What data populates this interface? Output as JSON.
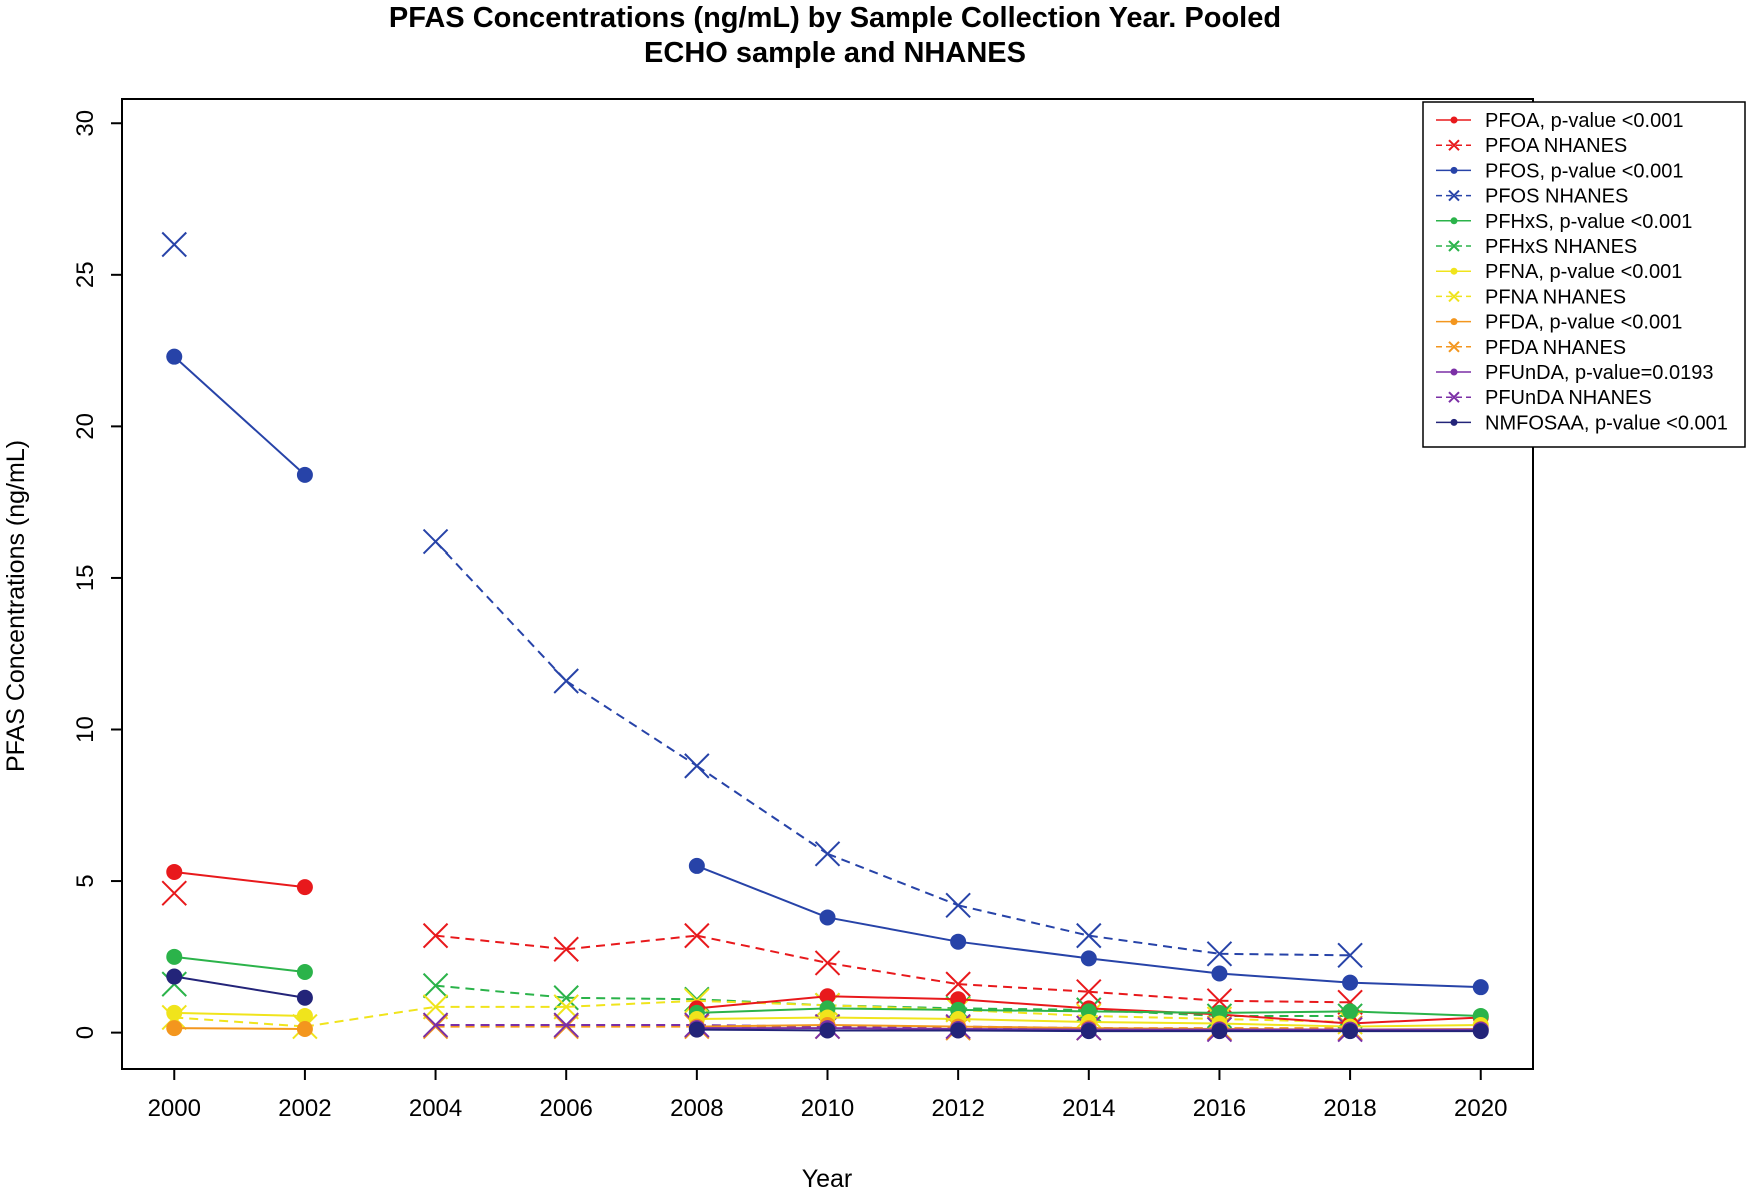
{
  "chart_data": {
    "type": "line",
    "title": "PFAS Concentrations (ng/mL) by Sample Collection Year. Pooled ECHO sample and NHANES",
    "title_lines": [
      "PFAS Concentrations (ng/mL) by Sample Collection Year. Pooled",
      "ECHO sample and NHANES"
    ],
    "xlabel": "Year",
    "ylabel": "PFAS Concentrations (ng/mL)",
    "xlim": [
      1999.2,
      2020.8
    ],
    "ylim": [
      -1.2,
      30.8
    ],
    "x_ticks": [
      2000,
      2002,
      2004,
      2006,
      2008,
      2010,
      2012,
      2014,
      2016,
      2018,
      2020
    ],
    "y_ticks": [
      0,
      5,
      10,
      15,
      20,
      25,
      30
    ],
    "grid": false,
    "legend_position": "top-right",
    "series": [
      {
        "name": "PFOA, p-value <0.001",
        "color": "#e8191c",
        "dashed": false,
        "marker": "dot",
        "points": [
          [
            2000,
            5.3
          ],
          [
            2002,
            4.8
          ],
          null,
          [
            2008,
            0.8
          ],
          [
            2010,
            1.2
          ],
          [
            2012,
            1.1
          ],
          [
            2014,
            0.8
          ],
          [
            2016,
            0.6
          ],
          [
            2018,
            0.3
          ],
          [
            2020,
            0.5
          ]
        ]
      },
      {
        "name": "PFOA NHANES",
        "color": "#e8191c",
        "dashed": true,
        "marker": "x",
        "points": [
          [
            2000,
            4.6
          ],
          null,
          [
            2004,
            3.2
          ],
          [
            2006,
            2.75
          ],
          [
            2008,
            3.2
          ],
          [
            2010,
            2.3
          ],
          [
            2012,
            1.6
          ],
          [
            2014,
            1.35
          ],
          [
            2016,
            1.05
          ],
          [
            2018,
            1.0
          ]
        ]
      },
      {
        "name": "PFOS, p-value <0.001",
        "color": "#2743a8",
        "dashed": false,
        "marker": "dot",
        "points": [
          [
            2000,
            22.3
          ],
          [
            2002,
            18.4
          ],
          null,
          [
            2008,
            5.5
          ],
          [
            2010,
            3.8
          ],
          [
            2012,
            3.0
          ],
          [
            2014,
            2.45
          ],
          [
            2016,
            1.95
          ],
          [
            2018,
            1.65
          ],
          [
            2020,
            1.5
          ]
        ]
      },
      {
        "name": "PFOS NHANES",
        "color": "#2743a8",
        "dashed": true,
        "marker": "x",
        "points": [
          [
            2000,
            26.0
          ],
          null,
          [
            2004,
            16.2
          ],
          [
            2006,
            11.6
          ],
          [
            2008,
            8.8
          ],
          [
            2010,
            5.9
          ],
          [
            2012,
            4.2
          ],
          [
            2014,
            3.2
          ],
          [
            2016,
            2.6
          ],
          [
            2018,
            2.55
          ]
        ]
      },
      {
        "name": "PFHxS, p-value <0.001",
        "color": "#2bb34a",
        "dashed": false,
        "marker": "dot",
        "points": [
          [
            2000,
            2.5
          ],
          [
            2002,
            2.0
          ],
          null,
          [
            2008,
            0.65
          ],
          [
            2010,
            0.8
          ],
          [
            2012,
            0.75
          ],
          [
            2014,
            0.7
          ],
          [
            2016,
            0.65
          ],
          [
            2018,
            0.7
          ],
          [
            2020,
            0.55
          ]
        ]
      },
      {
        "name": "PFHxS NHANES",
        "color": "#2bb34a",
        "dashed": true,
        "marker": "x",
        "points": [
          [
            2000,
            1.6
          ],
          null,
          [
            2004,
            1.55
          ],
          [
            2006,
            1.15
          ],
          [
            2008,
            1.1
          ],
          [
            2010,
            0.9
          ],
          [
            2012,
            0.8
          ],
          [
            2014,
            0.75
          ],
          [
            2016,
            0.55
          ],
          [
            2018,
            0.55
          ]
        ]
      },
      {
        "name": "PFNA, p-value <0.001",
        "color": "#f0e41c",
        "dashed": false,
        "marker": "dot",
        "points": [
          [
            2000,
            0.65
          ],
          [
            2002,
            0.55
          ],
          null,
          [
            2008,
            0.45
          ],
          [
            2010,
            0.5
          ],
          [
            2012,
            0.45
          ],
          [
            2014,
            0.35
          ],
          [
            2016,
            0.3
          ],
          [
            2018,
            0.2
          ],
          [
            2020,
            0.25
          ]
        ]
      },
      {
        "name": "PFNA NHANES",
        "color": "#f0e41c",
        "dashed": true,
        "marker": "x",
        "points": [
          [
            2000,
            0.5
          ],
          [
            2002,
            0.2
          ],
          [
            2004,
            0.85
          ],
          [
            2006,
            0.85
          ],
          [
            2008,
            1.05
          ],
          [
            2010,
            0.9
          ],
          [
            2012,
            0.75
          ],
          [
            2014,
            0.55
          ],
          [
            2016,
            0.45
          ],
          [
            2018,
            0.35
          ]
        ]
      },
      {
        "name": "PFDA, p-value <0.001",
        "color": "#f3961e",
        "dashed": false,
        "marker": "dot",
        "points": [
          [
            2000,
            0.15
          ],
          [
            2002,
            0.12
          ],
          null,
          [
            2008,
            0.2
          ],
          [
            2010,
            0.25
          ],
          [
            2012,
            0.2
          ],
          [
            2014,
            0.15
          ],
          [
            2016,
            0.12
          ],
          [
            2018,
            0.1
          ],
          [
            2020,
            0.12
          ]
        ]
      },
      {
        "name": "PFDA NHANES",
        "color": "#f3961e",
        "dashed": true,
        "marker": "x",
        "points": [
          null,
          null,
          [
            2004,
            0.2
          ],
          [
            2006,
            0.2
          ],
          [
            2008,
            0.2
          ],
          [
            2010,
            0.2
          ],
          [
            2012,
            0.15
          ],
          [
            2014,
            0.15
          ],
          [
            2016,
            0.15
          ],
          [
            2018,
            0.15
          ]
        ]
      },
      {
        "name": "PFUnDA, p-value=0.0193",
        "color": "#7b2fa6",
        "dashed": false,
        "marker": "dot",
        "points": [
          null,
          null,
          null,
          [
            2008,
            0.15
          ],
          [
            2010,
            0.15
          ],
          [
            2012,
            0.12
          ],
          [
            2014,
            0.1
          ],
          [
            2016,
            0.1
          ],
          [
            2018,
            0.1
          ],
          [
            2020,
            0.1
          ]
        ]
      },
      {
        "name": "PFUnDA NHANES",
        "color": "#7b2fa6",
        "dashed": true,
        "marker": "x",
        "points": [
          null,
          null,
          [
            2004,
            0.25
          ],
          [
            2006,
            0.25
          ],
          [
            2008,
            0.25
          ],
          [
            2010,
            0.2
          ],
          [
            2012,
            0.2
          ],
          [
            2014,
            0.15
          ],
          [
            2016,
            0.1
          ],
          [
            2018,
            0.1
          ]
        ]
      },
      {
        "name": "NMFOSAA, p-value <0.001",
        "color": "#232479",
        "dashed": false,
        "marker": "dot",
        "points": [
          [
            2000,
            1.85
          ],
          [
            2002,
            1.15
          ],
          null,
          [
            2008,
            0.1
          ],
          [
            2010,
            0.07
          ],
          [
            2012,
            0.07
          ],
          [
            2014,
            0.05
          ],
          [
            2016,
            0.05
          ],
          [
            2018,
            0.05
          ],
          [
            2020,
            0.05
          ]
        ]
      }
    ]
  }
}
